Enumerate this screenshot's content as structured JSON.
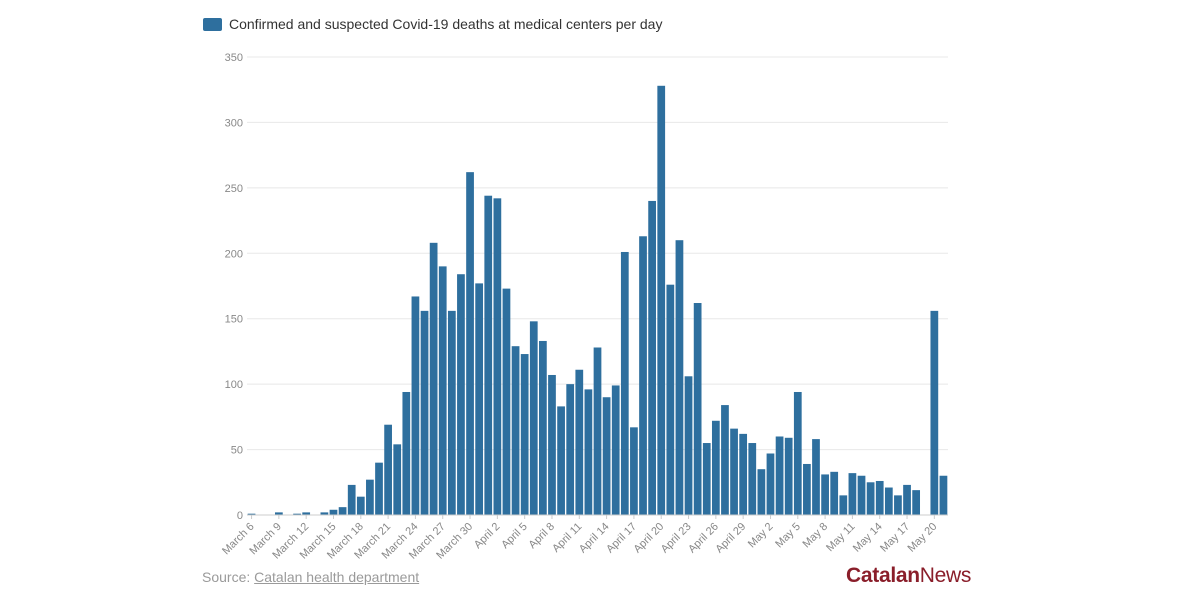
{
  "legend": {
    "label": "Confirmed and suspected Covid-19 deaths at medical centers per day"
  },
  "source": {
    "prefix": "Source:",
    "link": "Catalan health department"
  },
  "logo": {
    "part1": "Catalan",
    "part2": "News"
  },
  "colors": {
    "bar": "#2e6f9e",
    "grid": "#e8e8e8",
    "axis": "#cccccc",
    "logo": "#8a1e2a"
  },
  "chart_data": {
    "type": "bar",
    "title": "",
    "xlabel": "",
    "ylabel": "",
    "ylim": [
      0,
      350
    ],
    "yticks": [
      0,
      50,
      100,
      150,
      200,
      250,
      300,
      350
    ],
    "legend": [
      "Confirmed and suspected Covid-19 deaths at medical centers per day"
    ],
    "xtick_labels": [
      "March 6",
      "March 9",
      "March 12",
      "March 15",
      "March 18",
      "March 21",
      "March 24",
      "March 27",
      "March 30",
      "April 2",
      "April 5",
      "April 8",
      "April 11",
      "April 14",
      "April 17",
      "April 20",
      "April 23",
      "April 26",
      "April 29",
      "May 2",
      "May 5",
      "May 8",
      "May 11",
      "May 14",
      "May 17",
      "May 20"
    ],
    "x_start": "March 6",
    "values": [
      1,
      0,
      0,
      2,
      0,
      1,
      2,
      0,
      2,
      4,
      6,
      23,
      14,
      27,
      40,
      69,
      54,
      94,
      167,
      156,
      208,
      190,
      156,
      184,
      262,
      177,
      244,
      242,
      173,
      129,
      123,
      148,
      133,
      107,
      83,
      100,
      111,
      96,
      128,
      90,
      99,
      201,
      67,
      213,
      240,
      328,
      176,
      210,
      106,
      162,
      55,
      72,
      84,
      66,
      62,
      55,
      35,
      47,
      60,
      59,
      94,
      39,
      58,
      31,
      33,
      15,
      32,
      30,
      25,
      26,
      21,
      15,
      23,
      19,
      0,
      156,
      30
    ]
  }
}
